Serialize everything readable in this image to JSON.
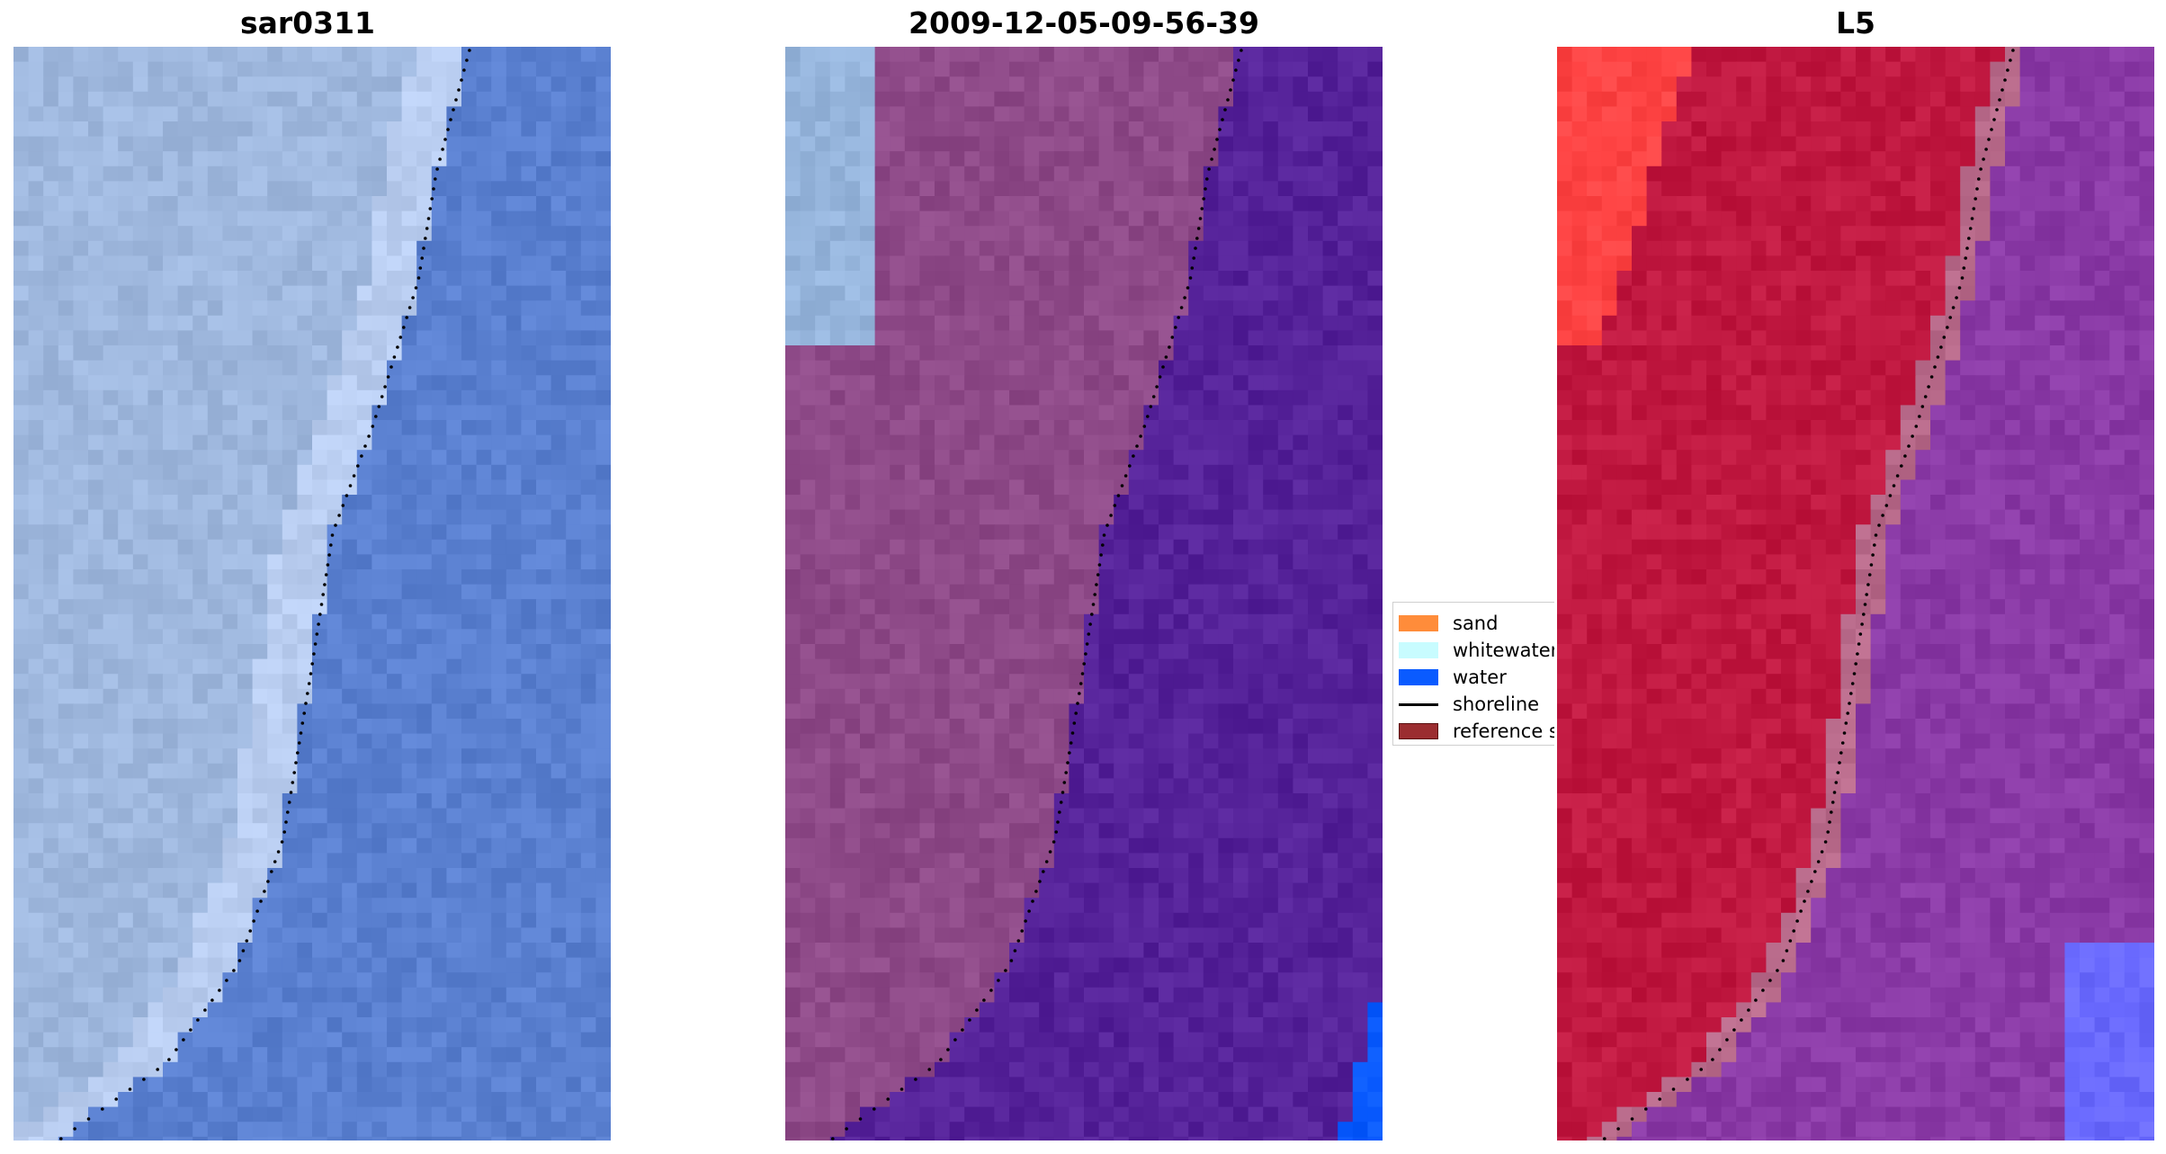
{
  "panels": [
    {
      "title": "sar0311",
      "kind": "rgb"
    },
    {
      "title": "2009-12-05-09-56-39",
      "kind": "classified"
    },
    {
      "title": "L5",
      "kind": "index"
    }
  ],
  "legend": {
    "items": [
      {
        "label": "sand",
        "color": "#ff8c3a"
      },
      {
        "label": "whitewater",
        "color": "#c8fcff"
      },
      {
        "label": "water",
        "color": "#0a5bff"
      },
      {
        "label": "shoreline",
        "color": "#000000"
      },
      {
        "label": "reference s",
        "color": "#9b2d30"
      }
    ]
  },
  "colors": {
    "rgb_water": "#5a80d0",
    "rgb_beach": "#9fb8de",
    "class_land": "#8e4a88",
    "class_water": "#552299",
    "class_whitewater": "#96b5dc",
    "class_water_blue": "#0a5bff",
    "index_land": "#c01840",
    "index_water": "#8a3aa6",
    "index_bright": "#ff4444",
    "index_blue": "#6a6aff",
    "shoreline": "#000000"
  }
}
